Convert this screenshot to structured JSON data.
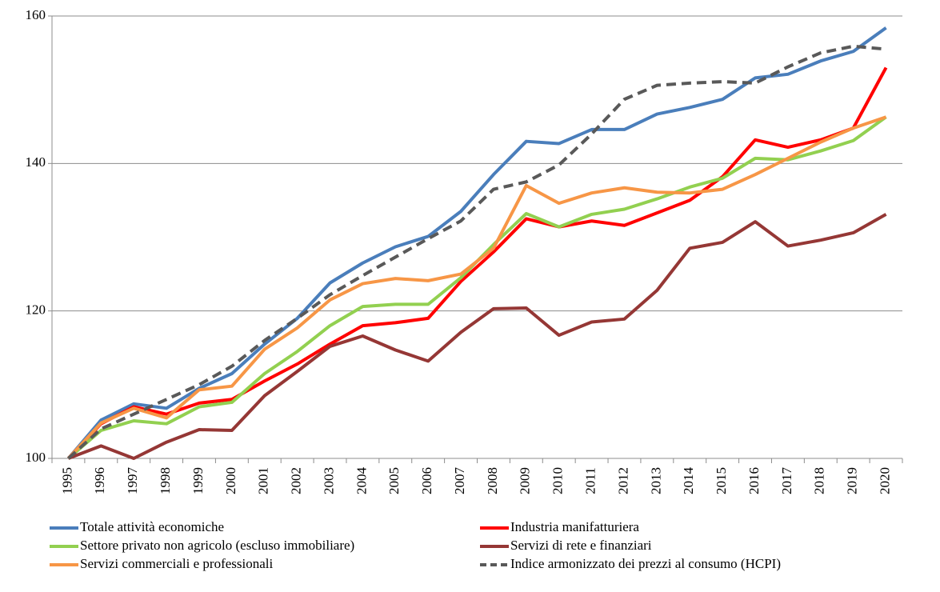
{
  "chart_data": {
    "type": "line",
    "categories": [
      "1995",
      "1996",
      "1997",
      "1998",
      "1999",
      "2000",
      "2001",
      "2002",
      "2003",
      "2004",
      "2005",
      "2006",
      "2007",
      "2008",
      "2009",
      "2010",
      "2011",
      "2012",
      "2013",
      "2014",
      "2015",
      "2016",
      "2017",
      "2018",
      "2019",
      "2020"
    ],
    "series": [
      {
        "name": "Totale attività economiche",
        "color": "#4a7ebb",
        "style": "solid",
        "values": [
          100,
          105.2,
          107.4,
          106.8,
          109.5,
          111.5,
          115.5,
          119,
          123.8,
          126.5,
          128.7,
          130.1,
          133.5,
          138.5,
          143,
          142.7,
          144.6,
          144.6,
          146.7,
          147.6,
          148.7,
          151.6,
          152.1,
          153.9,
          155.2,
          158.4
        ]
      },
      {
        "name": "Industria manifatturiera",
        "color": "#ff0000",
        "style": "solid",
        "values": [
          100,
          104.7,
          107,
          106,
          107.5,
          108,
          110.5,
          112.8,
          115.5,
          118,
          118.4,
          119,
          124,
          128,
          132.5,
          131.4,
          132.2,
          131.6,
          133.3,
          135,
          138.2,
          143.2,
          142.2,
          143.2,
          144.8,
          153
        ]
      },
      {
        "name": "Settore privato non agricolo (escluso immobiliare)",
        "color": "#92d050",
        "style": "solid",
        "values": [
          100,
          103.8,
          105.1,
          104.7,
          107,
          107.6,
          111.5,
          114.5,
          118,
          120.6,
          120.9,
          120.9,
          124.5,
          129,
          133.2,
          131.4,
          133.1,
          133.8,
          135.2,
          136.8,
          138,
          140.7,
          140.5,
          141.7,
          143.1,
          146.3
        ]
      },
      {
        "name": "Servizi di rete e finanziari",
        "color": "#953735",
        "style": "solid",
        "values": [
          100,
          101.7,
          100,
          102.2,
          103.9,
          103.8,
          108.5,
          111.8,
          115.2,
          116.6,
          114.7,
          113.2,
          117.1,
          120.3,
          120.4,
          116.7,
          118.5,
          118.9,
          122.8,
          128.5,
          129.3,
          132.1,
          128.8,
          129.6,
          130.6,
          133.1
        ]
      },
      {
        "name": "Servizi commerciali e professionali",
        "color": "#f79646",
        "style": "solid",
        "values": [
          100,
          104.8,
          106.8,
          105.5,
          109.3,
          109.8,
          114.8,
          117.7,
          121.5,
          123.7,
          124.4,
          124.1,
          125,
          128.5,
          137,
          134.6,
          136,
          136.7,
          136.1,
          136,
          136.5,
          138.5,
          140.7,
          142.9,
          144.8,
          146.3
        ]
      },
      {
        "name": "Indice armonizzato dei prezzi al consumo (HCPI)",
        "color": "#595959",
        "style": "dashed",
        "values": [
          100,
          104,
          106,
          108,
          110,
          112.5,
          116,
          119,
          122.2,
          124.8,
          127.3,
          129.8,
          132.2,
          136.5,
          137.5,
          139.8,
          144,
          148.7,
          150.6,
          150.9,
          151.1,
          150.9,
          153.1,
          155,
          155.9,
          155.5
        ]
      }
    ],
    "ylim": [
      100,
      160
    ],
    "yticks": [
      100,
      120,
      140,
      160
    ],
    "grid": true,
    "legend": "bottom"
  }
}
